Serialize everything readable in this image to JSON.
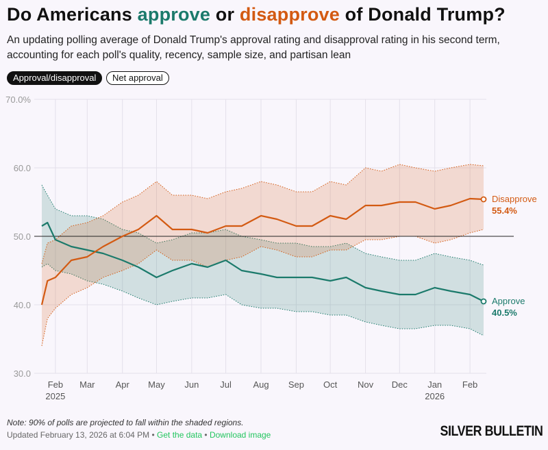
{
  "title": {
    "pre": "Do Americans ",
    "approve": "approve",
    "mid": " or ",
    "disapprove": "disapprove",
    "post": " of Donald Trump?"
  },
  "subtitle": "An updating polling average of Donald Trump's approval rating and disapproval rating in his second term, accounting for each poll's quality, recency, sample size, and partisan lean",
  "toggles": [
    "Approval/disapproval",
    "Net approval"
  ],
  "note": "Note: 90% of polls are projected to fall within the shaded regions.",
  "updated": "Updated February 13, 2026 at 6:04 PM",
  "links": [
    "Get the data",
    "Download image"
  ],
  "sep": "•",
  "logo": "SILVER BULLETIN",
  "chart_data": {
    "type": "line",
    "title": "Do Americans approve or disapprove of Donald Trump?",
    "ylim": [
      30,
      70
    ],
    "yticks": [
      "70.0%",
      "60.0",
      "50.0",
      "40.0",
      "30.0"
    ],
    "ytick_values": [
      70,
      60,
      50,
      40,
      30
    ],
    "xlim": [
      "2025-01-20",
      "2026-02-13"
    ],
    "xticks": [
      {
        "date": "2025-02-01",
        "label": "Feb",
        "year": "2025"
      },
      {
        "date": "2025-03-01",
        "label": "Mar"
      },
      {
        "date": "2025-04-01",
        "label": "Apr"
      },
      {
        "date": "2025-05-01",
        "label": "May"
      },
      {
        "date": "2025-06-01",
        "label": "Jun"
      },
      {
        "date": "2025-07-01",
        "label": "Jul"
      },
      {
        "date": "2025-08-01",
        "label": "Aug"
      },
      {
        "date": "2025-09-01",
        "label": "Sep"
      },
      {
        "date": "2025-10-01",
        "label": "Oct"
      },
      {
        "date": "2025-11-01",
        "label": "Nov"
      },
      {
        "date": "2025-12-01",
        "label": "Dec"
      },
      {
        "date": "2026-01-01",
        "label": "Jan",
        "year": "2026"
      },
      {
        "date": "2026-02-01",
        "label": "Feb"
      }
    ],
    "reference_line": 50,
    "dates": [
      "2025-01-20",
      "2025-01-25",
      "2025-02-01",
      "2025-02-15",
      "2025-03-01",
      "2025-03-15",
      "2025-04-01",
      "2025-04-15",
      "2025-05-01",
      "2025-05-15",
      "2025-06-01",
      "2025-06-15",
      "2025-07-01",
      "2025-07-15",
      "2025-08-01",
      "2025-08-15",
      "2025-09-01",
      "2025-09-15",
      "2025-10-01",
      "2025-10-15",
      "2025-11-01",
      "2025-11-15",
      "2025-12-01",
      "2025-12-15",
      "2026-01-01",
      "2026-01-15",
      "2026-02-01",
      "2026-02-13"
    ],
    "series": [
      {
        "name": "Approve",
        "color": "#1b7a6b",
        "label": "Approve",
        "last_label": "40.5%",
        "values": [
          51.5,
          52,
          49.5,
          48.5,
          48,
          47.5,
          46.5,
          45.5,
          44,
          45,
          46,
          45.5,
          46.5,
          45,
          44.5,
          44,
          44,
          44,
          43.5,
          44,
          42.5,
          42,
          41.5,
          41.5,
          42.5,
          42,
          41.5,
          40.5
        ],
        "lower": [
          45.5,
          46,
          45,
          44.5,
          43.5,
          43,
          42,
          41,
          40,
          40.5,
          41,
          41,
          41.5,
          40,
          39.5,
          39.5,
          39,
          39,
          38.5,
          38.5,
          37.5,
          37,
          36.5,
          36.5,
          37,
          37,
          36.5,
          35.5
        ],
        "upper": [
          57.5,
          56,
          54,
          53,
          53,
          52.5,
          51,
          50.5,
          49,
          49.5,
          50.5,
          50.5,
          51,
          50,
          49.5,
          49,
          49,
          48.5,
          48.5,
          49,
          47.5,
          47,
          46.5,
          46.5,
          47.5,
          47,
          46.5,
          45.8
        ]
      },
      {
        "name": "Disapprove",
        "color": "#d35a12",
        "label": "Disapprove",
        "last_label": "55.4%",
        "values": [
          40,
          43.5,
          44,
          46.5,
          47,
          48.5,
          50,
          51,
          53,
          51,
          51,
          50.5,
          51.5,
          51.5,
          53,
          52.5,
          51.5,
          51.5,
          53,
          52.5,
          54.5,
          54.5,
          55,
          55,
          54,
          54.5,
          55.5,
          55.4
        ],
        "lower": [
          34,
          38,
          39.5,
          41.5,
          42.5,
          44,
          45,
          46,
          48,
          46.5,
          46.5,
          45.5,
          46.5,
          47,
          48.5,
          48,
          47,
          47,
          48,
          48,
          49.5,
          49.5,
          50,
          50,
          49,
          49.5,
          50.5,
          51
        ],
        "upper": [
          46,
          49,
          49.5,
          51.5,
          52,
          53,
          55,
          56,
          58,
          56,
          56,
          55.5,
          56.5,
          57,
          58,
          57.5,
          56.5,
          56.5,
          58,
          57.5,
          60,
          59.5,
          60.5,
          60,
          59.5,
          60,
          60.5,
          60.3
        ]
      }
    ]
  }
}
